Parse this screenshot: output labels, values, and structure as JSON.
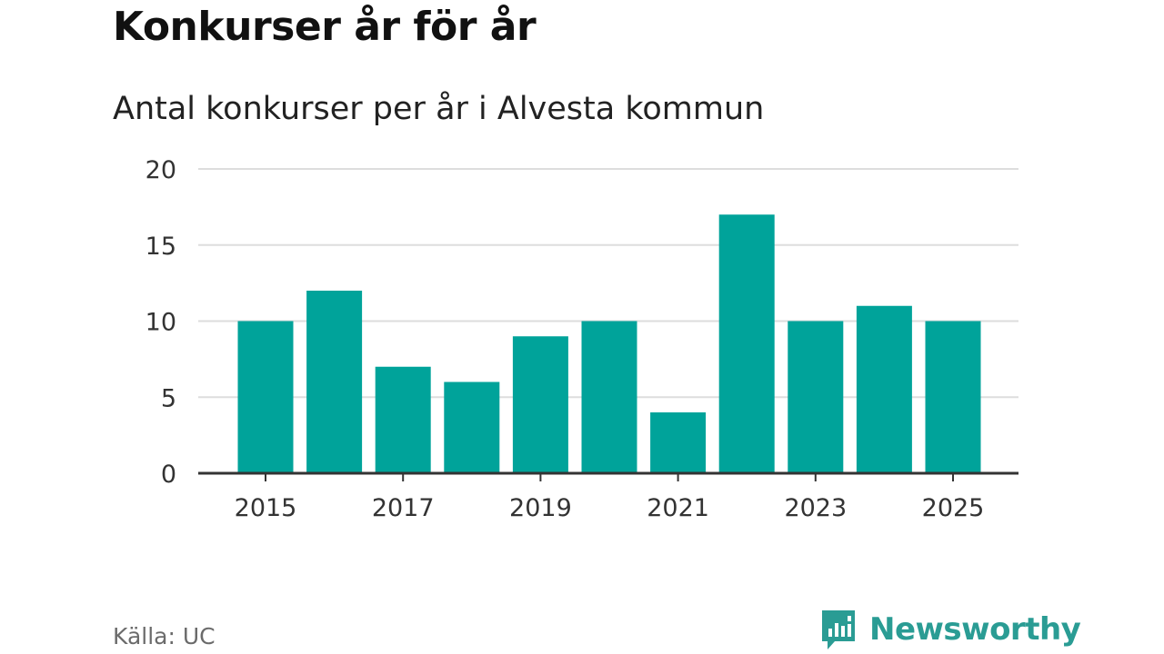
{
  "title": "Konkurser år för år",
  "subtitle": "Antal konkurser per år i Alvesta kommun",
  "source": "Källa: UC",
  "brand": {
    "name": "Newsworthy",
    "icon": "bar-chart-speech-bubble-icon",
    "color": "#2a9c94"
  },
  "colors": {
    "bar": "#00a39a",
    "grid": "#dddddd",
    "axis": "#333333"
  },
  "chart_data": {
    "type": "bar",
    "title": "Konkurser år för år",
    "subtitle": "Antal konkurser per år i Alvesta kommun",
    "categories": [
      2015,
      2016,
      2017,
      2018,
      2019,
      2020,
      2021,
      2022,
      2023,
      2024,
      2025
    ],
    "values": [
      10,
      12,
      7,
      6,
      9,
      10,
      4,
      17,
      10,
      11,
      10
    ],
    "x_tick_labels": [
      "2015",
      "2017",
      "2019",
      "2021",
      "2023",
      "2025"
    ],
    "y_ticks": [
      0,
      5,
      10,
      15,
      20
    ],
    "ylim": [
      0,
      20
    ],
    "xlabel": "",
    "ylabel": "",
    "grid": true,
    "legend": "none"
  }
}
